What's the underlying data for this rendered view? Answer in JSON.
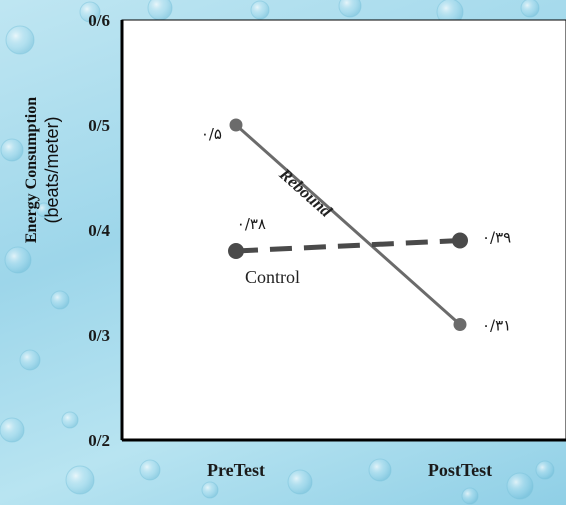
{
  "chart_data": {
    "type": "line",
    "categories": [
      "PreTest",
      "PostTest"
    ],
    "ylabel_line1": "Energy Consumption",
    "ylabel_line2": "(beats/meter)",
    "ylim": [
      0.2,
      0.6
    ],
    "yticks": [
      {
        "value": 0.2,
        "label": "0/2"
      },
      {
        "value": 0.3,
        "label": "0/3"
      },
      {
        "value": 0.4,
        "label": "0/4"
      },
      {
        "value": 0.5,
        "label": "0/5"
      },
      {
        "value": 0.6,
        "label": "0/6"
      }
    ],
    "grid": false,
    "series": [
      {
        "name": "Rebound",
        "values": [
          0.5,
          0.31
        ],
        "value_labels": [
          "٠/۵",
          "٠/٣١"
        ],
        "line_style": "solid",
        "color": "#6b6b6b"
      },
      {
        "name": "Control",
        "values": [
          0.38,
          0.39
        ],
        "value_labels": [
          "٠/٣٨",
          "٠/٣٩"
        ],
        "line_style": "dashed",
        "color": "#4a4a4a"
      }
    ]
  }
}
